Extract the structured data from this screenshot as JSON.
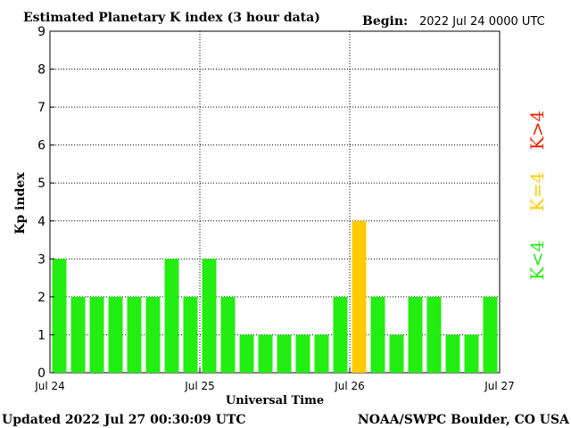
{
  "header": {
    "title": "Estimated Planetary K index (3 hour data)",
    "begin_label": "Begin:",
    "begin_value": "2022 Jul 24 0000 UTC"
  },
  "footer": {
    "updated": "Updated 2022 Jul 27 00:30:09 UTC",
    "source": "NOAA/SWPC Boulder, CO USA"
  },
  "legend": {
    "low": "K<4",
    "mid": "K=4",
    "high": "K>4"
  },
  "colors": {
    "low": "#22ee11",
    "mid": "#ffcc00",
    "high": "#ee2200"
  },
  "chart_data": {
    "type": "bar",
    "ylabel": "Kp index",
    "xlabel": "Universal Time",
    "ylim": [
      0,
      9
    ],
    "yticks": [
      "0",
      "1",
      "2",
      "3",
      "4",
      "5",
      "6",
      "7",
      "8",
      "9"
    ],
    "xtick_labels": [
      "Jul 24",
      "Jul 25",
      "Jul 26",
      "Jul 27"
    ],
    "grid": true,
    "values": [
      3,
      2,
      2,
      2,
      2,
      2,
      3,
      2,
      3,
      2,
      1,
      1,
      1,
      1,
      1,
      2,
      4,
      2,
      1,
      2,
      2,
      1,
      1,
      2
    ]
  }
}
